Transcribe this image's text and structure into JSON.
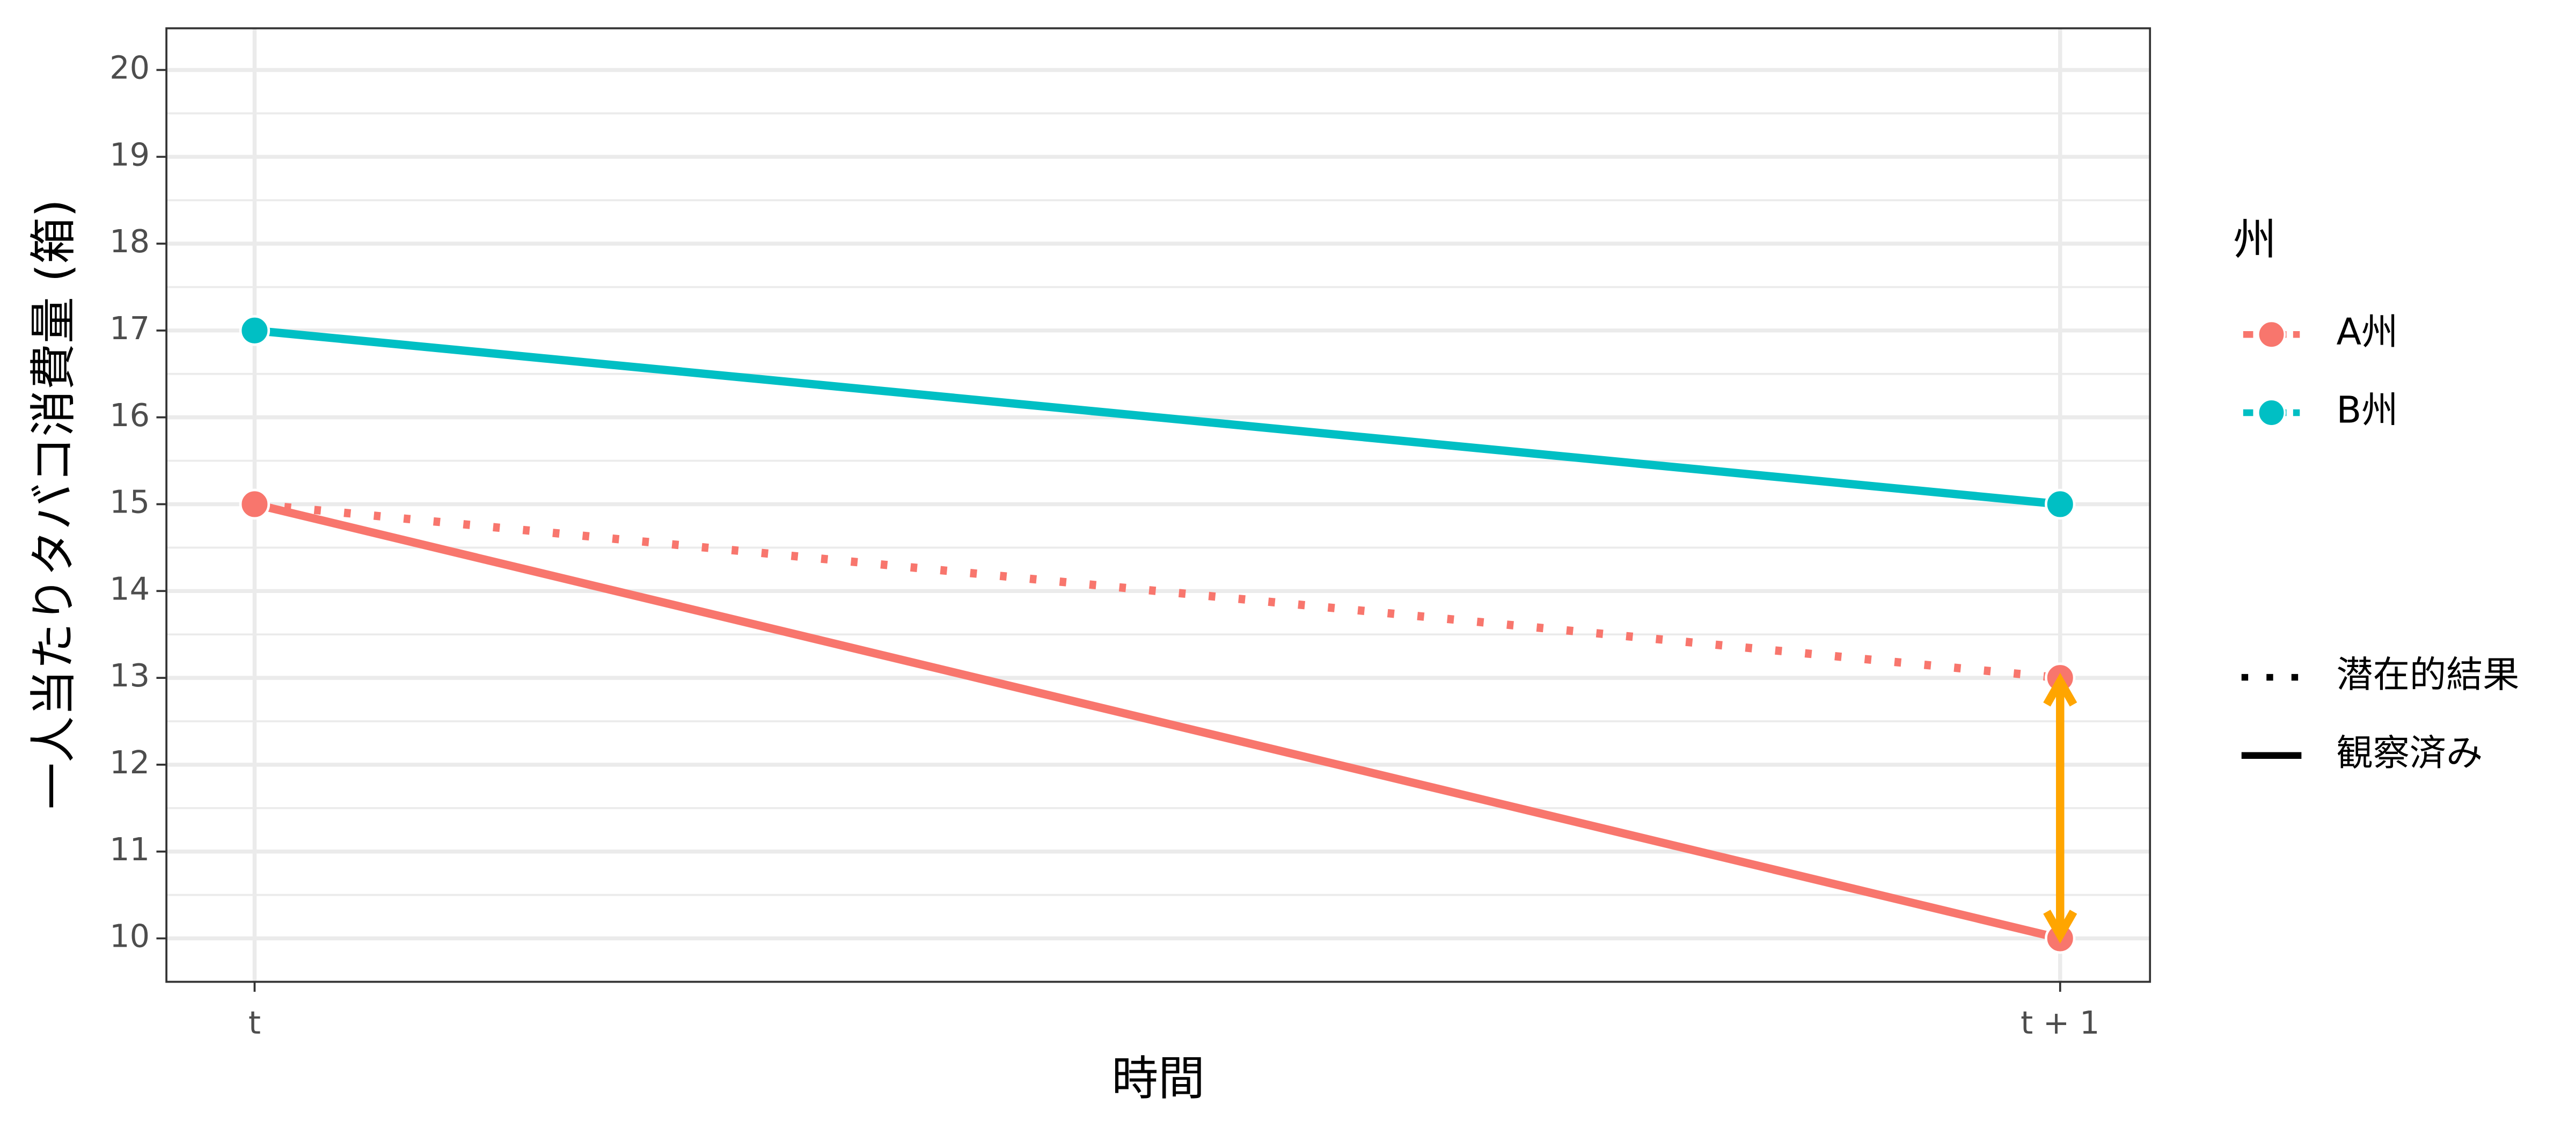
{
  "chart_data": {
    "type": "line",
    "x_label": "時間",
    "y_label": "一人当たりタバコ消費量 (箱)",
    "categories": [
      "t",
      "t + 1"
    ],
    "series": [
      {
        "name": "A州",
        "color": "#F8766D",
        "linetype": "dotted",
        "values": [
          15,
          13
        ]
      },
      {
        "name": "A州",
        "color": "#F8766D",
        "linetype": "solid",
        "values": [
          15,
          10
        ]
      },
      {
        "name": "B州",
        "color": "#00BFC4",
        "linetype": "solid",
        "values": [
          17,
          15
        ]
      }
    ],
    "legend_title": "州",
    "linetypes": [
      {
        "label": "潜在的結果",
        "linetype": "dotted"
      },
      {
        "label": "観察済み",
        "linetype": "solid"
      }
    ],
    "arrow": {
      "from": 10,
      "to": 13,
      "color": "#FFA500"
    },
    "ylim": [
      9.5,
      20.48
    ],
    "yticks": [
      10,
      11,
      12,
      13,
      14,
      15,
      16,
      17,
      18,
      19,
      20
    ],
    "grid": true
  }
}
